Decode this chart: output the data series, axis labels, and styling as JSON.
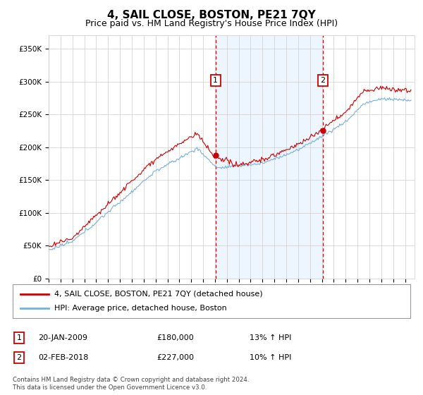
{
  "title": "4, SAIL CLOSE, BOSTON, PE21 7QY",
  "subtitle": "Price paid vs. HM Land Registry's House Price Index (HPI)",
  "title_fontsize": 11,
  "subtitle_fontsize": 9,
  "ylabel_ticks": [
    "£0",
    "£50K",
    "£100K",
    "£150K",
    "£200K",
    "£250K",
    "£300K",
    "£350K"
  ],
  "ytick_vals": [
    0,
    50000,
    100000,
    150000,
    200000,
    250000,
    300000,
    350000
  ],
  "ylim": [
    0,
    370000
  ],
  "xlim_start": 1995.0,
  "xlim_end": 2025.8,
  "sale1_date": "20-JAN-2009",
  "sale1_price": 180000,
  "sale1_pct": "13%",
  "sale1_x": 2009.05,
  "sale2_date": "02-FEB-2018",
  "sale2_price": 227000,
  "sale2_pct": "10%",
  "sale2_x": 2018.09,
  "line_color_price": "#cc0000",
  "line_color_hpi": "#7ab0d4",
  "shaded_color": "#ddeeff",
  "grid_color": "#cccccc",
  "background_color": "#ffffff",
  "legend_label1": "4, SAIL CLOSE, BOSTON, PE21 7QY (detached house)",
  "legend_label2": "HPI: Average price, detached house, Boston",
  "footnote1": "Contains HM Land Registry data © Crown copyright and database right 2024.",
  "footnote2": "This data is licensed under the Open Government Licence v3.0."
}
